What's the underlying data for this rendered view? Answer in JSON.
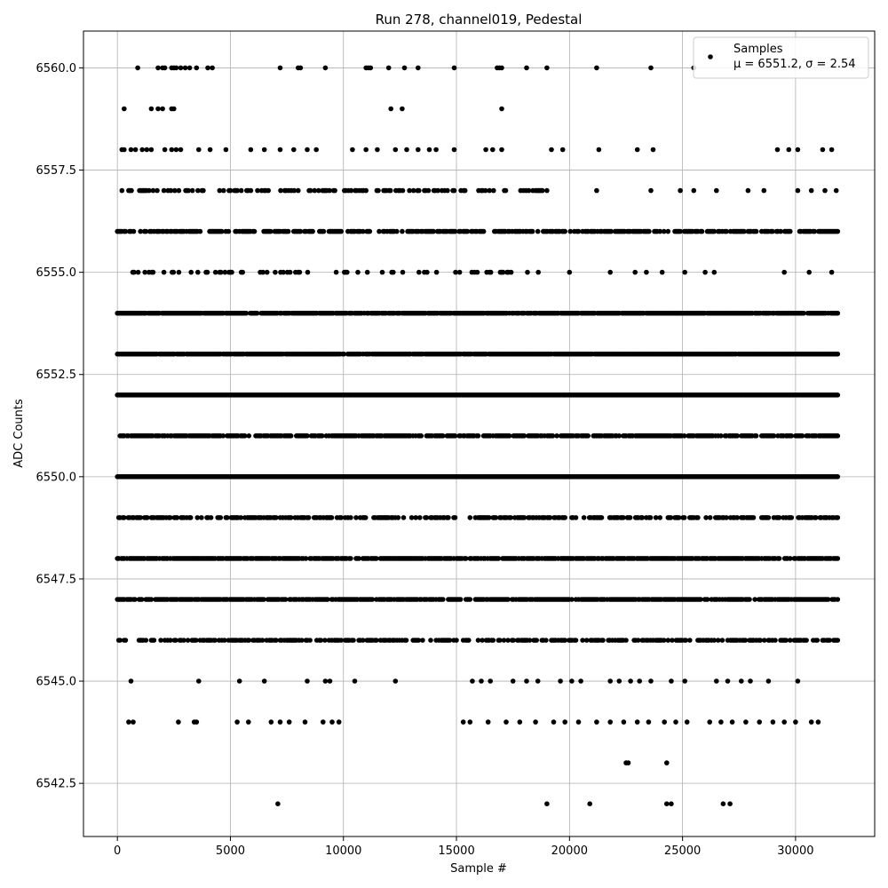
{
  "chart_data": {
    "type": "scatter",
    "title": "Run 278, channel019, Pedestal",
    "xlabel": "Sample #",
    "ylabel": "ADC Counts",
    "xlim": [
      -1500,
      33500
    ],
    "ylim": [
      6541.2,
      6560.9
    ],
    "xticks": [
      0,
      5000,
      10000,
      15000,
      20000,
      25000,
      30000
    ],
    "xtick_labels": [
      "0",
      "5000",
      "10000",
      "15000",
      "20000",
      "25000",
      "30000"
    ],
    "yticks": [
      6542.5,
      6545.0,
      6547.5,
      6550.0,
      6552.5,
      6555.0,
      6557.5,
      6560.0
    ],
    "ytick_labels": [
      "6542.5",
      "6545.0",
      "6547.5",
      "6550.0",
      "6552.5",
      "6555.0",
      "6557.5",
      "6560.0"
    ],
    "grid": true,
    "legend": {
      "placement": "top-right",
      "label_line1": "Samples",
      "label_line2": "μ = 6551.2, σ = 2.54"
    },
    "marker_color": "#000000",
    "series": [
      {
        "name": "Samples",
        "points": [
          [
            900,
            6560
          ],
          [
            1800,
            6560
          ],
          [
            2000,
            6560
          ],
          [
            2100,
            6560
          ],
          [
            2400,
            6560
          ],
          [
            2500,
            6560
          ],
          [
            2600,
            6560
          ],
          [
            2800,
            6560
          ],
          [
            3000,
            6560
          ],
          [
            3200,
            6560
          ],
          [
            3500,
            6560
          ],
          [
            4000,
            6560
          ],
          [
            4200,
            6560
          ],
          [
            7200,
            6560
          ],
          [
            8000,
            6560
          ],
          [
            8100,
            6560
          ],
          [
            9200,
            6560
          ],
          [
            11000,
            6560
          ],
          [
            11100,
            6560
          ],
          [
            11200,
            6560
          ],
          [
            12000,
            6560
          ],
          [
            12700,
            6560
          ],
          [
            13300,
            6560
          ],
          [
            14900,
            6560
          ],
          [
            16800,
            6560
          ],
          [
            16900,
            6560
          ],
          [
            17000,
            6560
          ],
          [
            18100,
            6560
          ],
          [
            19000,
            6560
          ],
          [
            21200,
            6560
          ],
          [
            23600,
            6560
          ],
          [
            25500,
            6560
          ],
          [
            300,
            6559
          ],
          [
            1500,
            6559
          ],
          [
            1800,
            6559
          ],
          [
            2000,
            6559
          ],
          [
            2400,
            6559
          ],
          [
            2500,
            6559
          ],
          [
            12100,
            6559
          ],
          [
            12600,
            6559
          ],
          [
            17000,
            6559
          ],
          [
            200,
            6558
          ],
          [
            300,
            6558
          ],
          [
            600,
            6558
          ],
          [
            800,
            6558
          ],
          [
            1100,
            6558
          ],
          [
            1300,
            6558
          ],
          [
            1500,
            6558
          ],
          [
            2100,
            6558
          ],
          [
            2400,
            6558
          ],
          [
            2600,
            6558
          ],
          [
            2800,
            6558
          ],
          [
            3600,
            6558
          ],
          [
            4100,
            6558
          ],
          [
            4800,
            6558
          ],
          [
            5900,
            6558
          ],
          [
            6500,
            6558
          ],
          [
            7200,
            6558
          ],
          [
            7800,
            6558
          ],
          [
            8400,
            6558
          ],
          [
            8800,
            6558
          ],
          [
            10400,
            6558
          ],
          [
            11000,
            6558
          ],
          [
            11500,
            6558
          ],
          [
            12300,
            6558
          ],
          [
            12800,
            6558
          ],
          [
            13300,
            6558
          ],
          [
            13800,
            6558
          ],
          [
            14100,
            6558
          ],
          [
            14900,
            6558
          ],
          [
            16300,
            6558
          ],
          [
            16600,
            6558
          ],
          [
            17000,
            6558
          ],
          [
            19200,
            6558
          ],
          [
            19700,
            6558
          ],
          [
            21300,
            6558
          ],
          [
            23000,
            6558
          ],
          [
            23700,
            6558
          ],
          [
            29200,
            6558
          ],
          [
            29700,
            6558
          ],
          [
            30100,
            6558
          ],
          [
            31200,
            6558
          ],
          [
            31600,
            6558
          ],
          [
            19000,
            6557
          ],
          [
            21200,
            6557
          ],
          [
            23600,
            6557
          ],
          [
            24900,
            6557
          ],
          [
            25500,
            6557
          ],
          [
            26500,
            6557
          ],
          [
            27900,
            6557
          ],
          [
            28600,
            6557
          ],
          [
            30100,
            6557
          ],
          [
            30700,
            6557
          ],
          [
            31300,
            6557
          ],
          [
            31800,
            6557
          ],
          [
            20000,
            6555
          ],
          [
            21800,
            6555
          ],
          [
            22900,
            6555
          ],
          [
            23400,
            6555
          ],
          [
            24100,
            6555
          ],
          [
            25100,
            6555
          ],
          [
            26000,
            6555
          ],
          [
            26400,
            6555
          ],
          [
            29500,
            6555
          ],
          [
            30600,
            6555
          ],
          [
            31600,
            6555
          ],
          [
            600,
            6545
          ],
          [
            3600,
            6545
          ],
          [
            5400,
            6545
          ],
          [
            6500,
            6545
          ],
          [
            8400,
            6545
          ],
          [
            9200,
            6545
          ],
          [
            9400,
            6545
          ],
          [
            10500,
            6545
          ],
          [
            12300,
            6545
          ],
          [
            15700,
            6545
          ],
          [
            16100,
            6545
          ],
          [
            16500,
            6545
          ],
          [
            17500,
            6545
          ],
          [
            18100,
            6545
          ],
          [
            18600,
            6545
          ],
          [
            19600,
            6545
          ],
          [
            20100,
            6545
          ],
          [
            20500,
            6545
          ],
          [
            21800,
            6545
          ],
          [
            22200,
            6545
          ],
          [
            22700,
            6545
          ],
          [
            23100,
            6545
          ],
          [
            23600,
            6545
          ],
          [
            24500,
            6545
          ],
          [
            25100,
            6545
          ],
          [
            26500,
            6545
          ],
          [
            27000,
            6545
          ],
          [
            27600,
            6545
          ],
          [
            28000,
            6545
          ],
          [
            28800,
            6545
          ],
          [
            30100,
            6545
          ],
          [
            500,
            6544
          ],
          [
            700,
            6544
          ],
          [
            2700,
            6544
          ],
          [
            3400,
            6544
          ],
          [
            3500,
            6544
          ],
          [
            5300,
            6544
          ],
          [
            5800,
            6544
          ],
          [
            6800,
            6544
          ],
          [
            7200,
            6544
          ],
          [
            7600,
            6544
          ],
          [
            8300,
            6544
          ],
          [
            9100,
            6544
          ],
          [
            9500,
            6544
          ],
          [
            9800,
            6544
          ],
          [
            15300,
            6544
          ],
          [
            15600,
            6544
          ],
          [
            16400,
            6544
          ],
          [
            17200,
            6544
          ],
          [
            17800,
            6544
          ],
          [
            18500,
            6544
          ],
          [
            19300,
            6544
          ],
          [
            19800,
            6544
          ],
          [
            20400,
            6544
          ],
          [
            21200,
            6544
          ],
          [
            21800,
            6544
          ],
          [
            22400,
            6544
          ],
          [
            23000,
            6544
          ],
          [
            23500,
            6544
          ],
          [
            24200,
            6544
          ],
          [
            24700,
            6544
          ],
          [
            25200,
            6544
          ],
          [
            26200,
            6544
          ],
          [
            26700,
            6544
          ],
          [
            27200,
            6544
          ],
          [
            27800,
            6544
          ],
          [
            28400,
            6544
          ],
          [
            29000,
            6544
          ],
          [
            29500,
            6544
          ],
          [
            30000,
            6544
          ],
          [
            30700,
            6544
          ],
          [
            31000,
            6544
          ],
          [
            22500,
            6543
          ],
          [
            22600,
            6543
          ],
          [
            24300,
            6543
          ],
          [
            7100,
            6542
          ],
          [
            19000,
            6542
          ],
          [
            20900,
            6542
          ],
          [
            24300,
            6542
          ],
          [
            24500,
            6542
          ],
          [
            26800,
            6542
          ],
          [
            27100,
            6542
          ]
        ]
      }
    ],
    "dense_levels": [
      {
        "value": 6557,
        "x_range": [
          200,
          18800
        ],
        "density": 0.35
      },
      {
        "value": 6556,
        "x_range": [
          0,
          31900
        ],
        "density": 0.65
      },
      {
        "value": 6555,
        "x_range": [
          200,
          19000
        ],
        "density": 0.25
      },
      {
        "value": 6554,
        "x_range": [
          0,
          31900
        ],
        "density": 0.9
      },
      {
        "value": 6553,
        "x_range": [
          0,
          31900
        ],
        "density": 0.95
      },
      {
        "value": 6552,
        "x_range": [
          0,
          31900
        ],
        "density": 1.0
      },
      {
        "value": 6551,
        "x_range": [
          0,
          31900
        ],
        "density": 0.8
      },
      {
        "value": 6550,
        "x_range": [
          0,
          31900
        ],
        "density": 1.0
      },
      {
        "value": 6549,
        "x_range": [
          0,
          31900
        ],
        "density": 0.55
      },
      {
        "value": 6548,
        "x_range": [
          0,
          31900
        ],
        "density": 0.85
      },
      {
        "value": 6547,
        "x_range": [
          0,
          31900
        ],
        "density": 0.8
      },
      {
        "value": 6546,
        "x_range": [
          0,
          31900
        ],
        "density": 0.55
      }
    ]
  }
}
